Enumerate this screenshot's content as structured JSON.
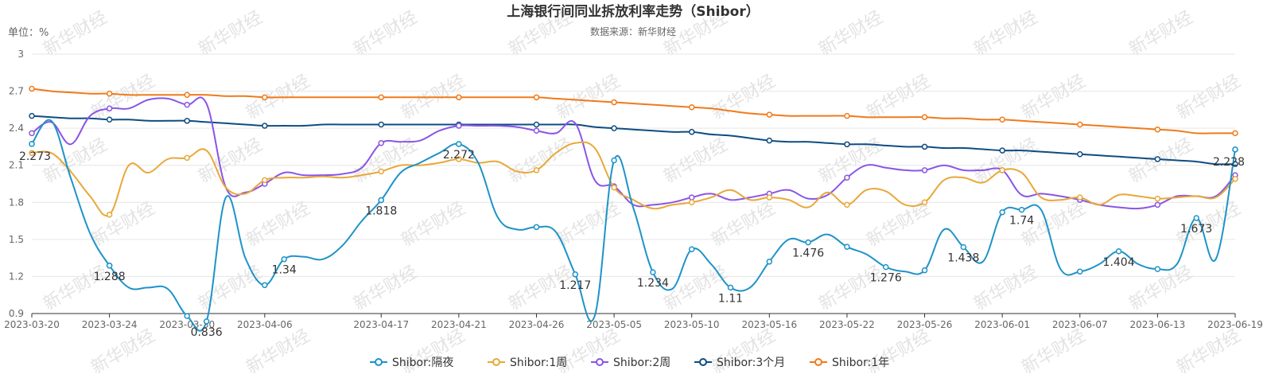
{
  "chart_data": {
    "type": "line",
    "title": "上海银行间同业拆放利率走势（Shibor）",
    "subtitle": "数据来源：新华财经",
    "unit_label": "单位：%",
    "watermark": "新华财经",
    "ylim": [
      0.9,
      3.0
    ],
    "yticks": [
      0.9,
      1.2,
      1.5,
      1.8,
      2.1,
      2.4,
      2.7,
      3
    ],
    "grid": true,
    "legend_position": "bottom",
    "x": [
      "2023-03-20",
      "2023-03-21",
      "2023-03-22",
      "2023-03-23",
      "2023-03-24",
      "2023-03-27",
      "2023-03-28",
      "2023-03-29",
      "2023-03-30",
      "2023-03-31",
      "2023-04-03",
      "2023-04-04",
      "2023-04-06",
      "2023-04-07",
      "2023-04-10",
      "2023-04-11",
      "2023-04-12",
      "2023-04-13",
      "2023-04-17",
      "2023-04-18",
      "2023-04-19",
      "2023-04-20",
      "2023-04-21",
      "2023-04-23",
      "2023-04-24",
      "2023-04-25",
      "2023-04-26",
      "2023-04-27",
      "2023-04-28",
      "2023-05-04",
      "2023-05-05",
      "2023-05-06",
      "2023-05-08",
      "2023-05-09",
      "2023-05-10",
      "2023-05-11",
      "2023-05-12",
      "2023-05-15",
      "2023-05-16",
      "2023-05-17",
      "2023-05-18",
      "2023-05-19",
      "2023-05-22",
      "2023-05-23",
      "2023-05-24",
      "2023-05-25",
      "2023-05-26",
      "2023-05-29",
      "2023-05-30",
      "2023-05-31",
      "2023-06-01",
      "2023-06-02",
      "2023-06-05",
      "2023-06-06",
      "2023-06-07",
      "2023-06-08",
      "2023-06-09",
      "2023-06-12",
      "2023-06-13",
      "2023-06-14",
      "2023-06-15",
      "2023-06-16",
      "2023-06-19"
    ],
    "x_tick_labels": [
      "2023-03-20",
      "2023-03-24",
      "2023-03-30",
      "2023-04-06",
      "2023-04-17",
      "2023-04-21",
      "2023-04-26",
      "2023-05-05",
      "2023-05-10",
      "2023-05-16",
      "2023-05-22",
      "2023-05-26",
      "2023-06-01",
      "2023-06-07",
      "2023-06-13",
      "2023-06-19"
    ],
    "x_tick_labels_shown": [
      "2023-03-20",
      "2023-03-24",
      "2023-03-30",
      "2023-04-06",
      "2023-04-17",
      "2023-04-21",
      "2023-04-26",
      "2023-05-05",
      "2023-05-10",
      "2023-05-16",
      "2023-05-22",
      "2023-05-26",
      "2023-06-01",
      "2023-06-07",
      "2023-06-13",
      "2023-06-19"
    ],
    "series": [
      {
        "name": "Shibor:隔夜",
        "color": "#1E93C8",
        "values": [
          2.273,
          2.46,
          2.0,
          1.55,
          1.288,
          1.11,
          1.11,
          1.1,
          0.88,
          0.836,
          1.84,
          1.35,
          1.13,
          1.34,
          1.36,
          1.34,
          1.45,
          1.65,
          1.818,
          2.04,
          2.12,
          2.2,
          2.272,
          2.12,
          1.68,
          1.58,
          1.6,
          1.56,
          1.217,
          0.88,
          2.14,
          1.75,
          1.234,
          1.1,
          1.42,
          1.3,
          1.11,
          1.11,
          1.32,
          1.5,
          1.476,
          1.54,
          1.44,
          1.38,
          1.276,
          1.24,
          1.25,
          1.58,
          1.438,
          1.32,
          1.72,
          1.74,
          1.74,
          1.26,
          1.24,
          1.3,
          1.404,
          1.3,
          1.26,
          1.3,
          1.673,
          1.34,
          2.228
        ],
        "labels": {
          "0": "2.273",
          "4": "1.288",
          "9": "0.836",
          "13": "1.34",
          "18": "1.818",
          "22": "2.272",
          "28": "1.217",
          "32": "1.234",
          "36": "1.11",
          "40": "1.476",
          "44": "1.276",
          "48": "1.438",
          "51": "1.74",
          "56": "1.404",
          "60": "1.673",
          "62": "2.228"
        }
      },
      {
        "name": "Shibor:1周",
        "color": "#E8A838",
        "values": [
          2.2,
          2.2,
          2.05,
          1.85,
          1.7,
          2.1,
          2.04,
          2.15,
          2.16,
          2.22,
          1.92,
          1.87,
          1.98,
          2.0,
          2.0,
          2.01,
          2.0,
          2.02,
          2.05,
          2.1,
          2.1,
          2.12,
          2.15,
          2.12,
          2.13,
          2.05,
          2.06,
          2.2,
          2.28,
          2.24,
          1.92,
          1.82,
          1.75,
          1.78,
          1.8,
          1.84,
          1.9,
          1.82,
          1.84,
          1.82,
          1.76,
          1.88,
          1.78,
          1.9,
          1.89,
          1.78,
          1.8,
          1.98,
          2.0,
          1.96,
          2.06,
          2.04,
          1.84,
          1.82,
          1.84,
          1.78,
          1.86,
          1.85,
          1.83,
          1.84,
          1.85,
          1.84,
          1.99
        ],
        "labels": {}
      },
      {
        "name": "Shibor:2周",
        "color": "#8A55E6",
        "values": [
          2.36,
          2.45,
          2.27,
          2.5,
          2.56,
          2.56,
          2.63,
          2.64,
          2.59,
          2.6,
          1.92,
          1.88,
          1.95,
          2.04,
          2.02,
          2.02,
          2.03,
          2.08,
          2.28,
          2.29,
          2.3,
          2.38,
          2.42,
          2.42,
          2.42,
          2.41,
          2.38,
          2.36,
          2.44,
          1.98,
          1.93,
          1.78,
          1.78,
          1.8,
          1.84,
          1.87,
          1.82,
          1.84,
          1.87,
          1.9,
          1.83,
          1.86,
          2.0,
          2.1,
          2.08,
          2.06,
          2.06,
          2.1,
          2.06,
          2.06,
          2.06,
          1.86,
          1.87,
          1.85,
          1.82,
          1.78,
          1.76,
          1.75,
          1.78,
          1.85,
          1.85,
          1.85,
          2.02
        ],
        "labels": {}
      },
      {
        "name": "Shibor:3个月",
        "color": "#0F4C81",
        "values": [
          2.5,
          2.49,
          2.48,
          2.48,
          2.47,
          2.47,
          2.46,
          2.46,
          2.46,
          2.45,
          2.44,
          2.43,
          2.42,
          2.42,
          2.42,
          2.43,
          2.43,
          2.43,
          2.43,
          2.43,
          2.43,
          2.43,
          2.43,
          2.43,
          2.43,
          2.43,
          2.43,
          2.43,
          2.43,
          2.41,
          2.4,
          2.39,
          2.38,
          2.37,
          2.37,
          2.35,
          2.34,
          2.32,
          2.3,
          2.29,
          2.29,
          2.28,
          2.27,
          2.27,
          2.26,
          2.25,
          2.25,
          2.24,
          2.24,
          2.23,
          2.22,
          2.22,
          2.21,
          2.2,
          2.19,
          2.18,
          2.17,
          2.16,
          2.15,
          2.14,
          2.13,
          2.11,
          2.11
        ],
        "labels": {}
      },
      {
        "name": "Shibor:1年",
        "color": "#F07A1A",
        "values": [
          2.72,
          2.7,
          2.69,
          2.68,
          2.68,
          2.67,
          2.67,
          2.67,
          2.67,
          2.67,
          2.66,
          2.66,
          2.65,
          2.65,
          2.65,
          2.65,
          2.65,
          2.65,
          2.65,
          2.65,
          2.65,
          2.65,
          2.65,
          2.65,
          2.65,
          2.65,
          2.65,
          2.64,
          2.63,
          2.62,
          2.61,
          2.6,
          2.59,
          2.58,
          2.57,
          2.56,
          2.54,
          2.52,
          2.51,
          2.5,
          2.5,
          2.5,
          2.5,
          2.49,
          2.49,
          2.49,
          2.49,
          2.48,
          2.48,
          2.47,
          2.47,
          2.46,
          2.45,
          2.44,
          2.43,
          2.42,
          2.41,
          2.4,
          2.39,
          2.38,
          2.36,
          2.36,
          2.36
        ],
        "labels": {}
      }
    ]
  }
}
